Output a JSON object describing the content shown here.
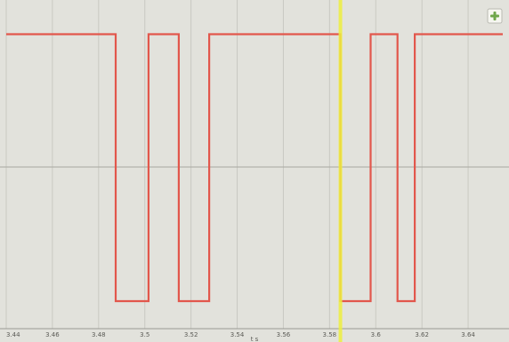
{
  "chart_data": {
    "type": "line",
    "title": "",
    "xlabel": "t s",
    "ylabel": "",
    "xlim": [
      3.44,
      3.655
    ],
    "ylim": [
      0,
      1
    ],
    "grid": true,
    "x_ticks": [
      3.44,
      3.46,
      3.48,
      3.5,
      3.52,
      3.54,
      3.56,
      3.58,
      3.6,
      3.62,
      3.64
    ],
    "x_tick_labels": [
      "3.44",
      "3.46",
      "3.48",
      "3.5",
      "3.52",
      "3.54",
      "3.56",
      "3.58",
      "3.6",
      "3.62",
      "3.64"
    ],
    "series": [
      {
        "color": "#e2574c",
        "x": [
          3.44,
          3.4874,
          3.4874,
          3.5016,
          3.5016,
          3.5147,
          3.5147,
          3.5279,
          3.5279,
          3.5847,
          3.5847,
          3.5978,
          3.5978,
          3.6094,
          3.6094,
          3.6169,
          3.6169,
          3.655
        ],
        "y": [
          1,
          1,
          0,
          0,
          1,
          1,
          0,
          0,
          1,
          1,
          0,
          0,
          1,
          1,
          0,
          0,
          1,
          1
        ]
      }
    ],
    "cursor": {
      "x": 3.5847,
      "color": "#eef03e"
    }
  },
  "corner_button": {
    "icon": "plus-icon",
    "color": "#6fa64a"
  }
}
